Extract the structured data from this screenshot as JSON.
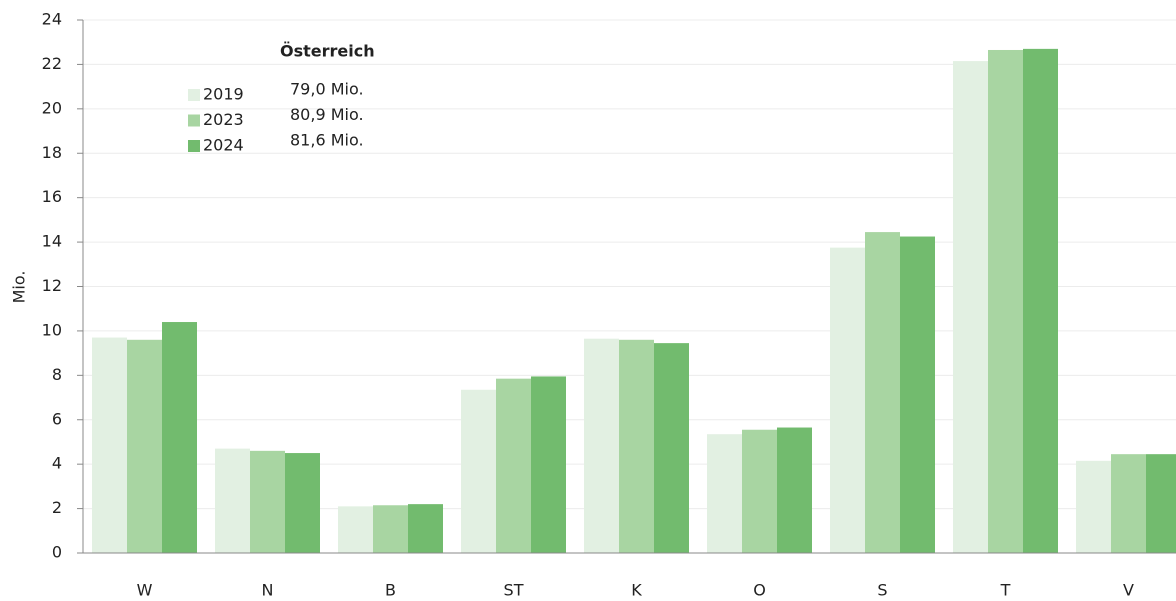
{
  "chart_data": {
    "type": "bar",
    "y_label": "Mio.",
    "legend_title": "Österreich",
    "categories": [
      "W",
      "N",
      "B",
      "ST",
      "K",
      "O",
      "S",
      "T",
      "V"
    ],
    "series": [
      {
        "name": "2019",
        "color": "#e2f0e2",
        "note": "79,0 Mio.",
        "values": [
          9.7,
          4.7,
          2.1,
          7.35,
          9.65,
          5.35,
          13.75,
          22.15,
          4.15
        ]
      },
      {
        "name": "2023",
        "color": "#a8d5a2",
        "note": "80,9 Mio.",
        "values": [
          9.6,
          4.6,
          2.15,
          7.85,
          9.6,
          5.55,
          14.45,
          22.65,
          4.45
        ]
      },
      {
        "name": "2024",
        "color": "#72bb6e",
        "note": "81,6 Mio.",
        "values": [
          10.4,
          4.5,
          2.2,
          7.95,
          9.45,
          5.65,
          14.25,
          22.7,
          4.45
        ]
      }
    ],
    "ylim": [
      0,
      24
    ],
    "yticks": [
      0,
      2,
      4,
      6,
      8,
      10,
      12,
      14,
      16,
      18,
      20,
      22,
      24
    ],
    "grid": true
  }
}
